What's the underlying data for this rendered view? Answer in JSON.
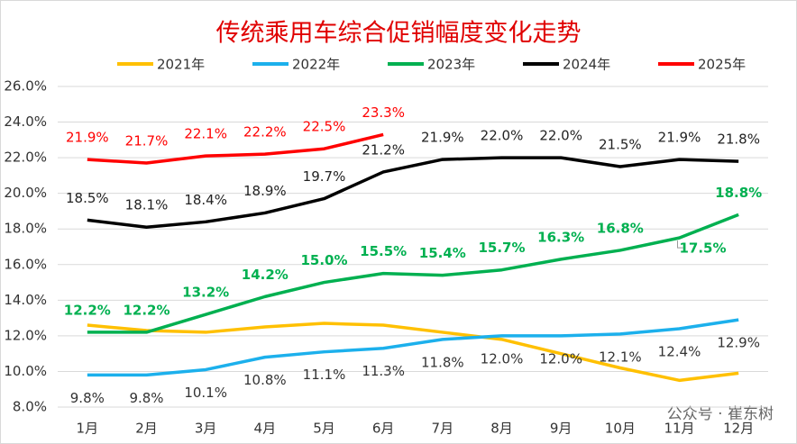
{
  "chart_data": {
    "type": "line",
    "title": "传统乘用车综合促销幅度变化走势",
    "categories": [
      "1月",
      "2月",
      "3月",
      "4月",
      "5月",
      "6月",
      "7月",
      "8月",
      "9月",
      "10月",
      "11月",
      "12月"
    ],
    "series": [
      {
        "name": "2021年",
        "color": "#ffc000",
        "values": [
          12.6,
          12.3,
          12.2,
          12.5,
          12.7,
          12.6,
          12.2,
          11.8,
          11.0,
          10.2,
          9.5,
          9.9
        ]
      },
      {
        "name": "2022年",
        "color": "#1cb0ec",
        "values": [
          9.8,
          9.8,
          10.1,
          10.8,
          11.1,
          11.3,
          11.8,
          12.0,
          12.0,
          12.1,
          12.4,
          12.9
        ],
        "value_labels": [
          "9.8%",
          "9.8%",
          "10.1%",
          "10.8%",
          "11.1%",
          "11.3%",
          "11.8%",
          "12.0%",
          "12.0%",
          "12.1%",
          "12.4%",
          "12.9%"
        ]
      },
      {
        "name": "2023年",
        "color": "#00b050",
        "values": [
          12.2,
          12.2,
          13.2,
          14.2,
          15.0,
          15.5,
          15.4,
          15.7,
          16.3,
          16.8,
          17.5,
          18.8
        ],
        "value_labels": [
          "12.2%",
          "12.2%",
          "13.2%",
          "14.2%",
          "15.0%",
          "15.5%",
          "15.4%",
          "15.7%",
          "16.3%",
          "16.8%",
          "17.5%",
          "18.8%"
        ]
      },
      {
        "name": "2024年",
        "color": "#000000",
        "values": [
          18.5,
          18.1,
          18.4,
          18.9,
          19.7,
          21.2,
          21.9,
          22.0,
          22.0,
          21.5,
          21.9,
          21.8
        ],
        "value_labels": [
          "18.5%",
          "18.1%",
          "18.4%",
          "18.9%",
          "19.7%",
          "21.2%",
          "21.9%",
          "22.0%",
          "22.0%",
          "21.5%",
          "21.9%",
          "21.8%"
        ]
      },
      {
        "name": "2025年",
        "color": "#ff0000",
        "values": [
          21.9,
          21.7,
          22.1,
          22.2,
          22.5,
          23.3,
          null,
          null,
          null,
          null,
          null,
          null
        ],
        "value_labels": [
          "21.9%",
          "21.7%",
          "22.1%",
          "22.2%",
          "22.5%",
          "23.3%",
          null,
          null,
          null,
          null,
          null,
          null
        ]
      }
    ],
    "ylim": [
      8,
      26
    ],
    "yticks": [
      {
        "value": 8,
        "label": "8.0%"
      },
      {
        "value": 10,
        "label": "10.0%"
      },
      {
        "value": 12,
        "label": "12.0%"
      },
      {
        "value": 14,
        "label": "14.0%"
      },
      {
        "value": 16,
        "label": "16.0%"
      },
      {
        "value": 18,
        "label": "18.0%"
      },
      {
        "value": 20,
        "label": "20.0%"
      },
      {
        "value": 22,
        "label": "22.0%"
      },
      {
        "value": 24,
        "label": "24.0%"
      },
      {
        "value": 26,
        "label": "26.0%"
      }
    ],
    "grid": true,
    "legend": "top",
    "watermark": "公众号 · 崔东树"
  }
}
